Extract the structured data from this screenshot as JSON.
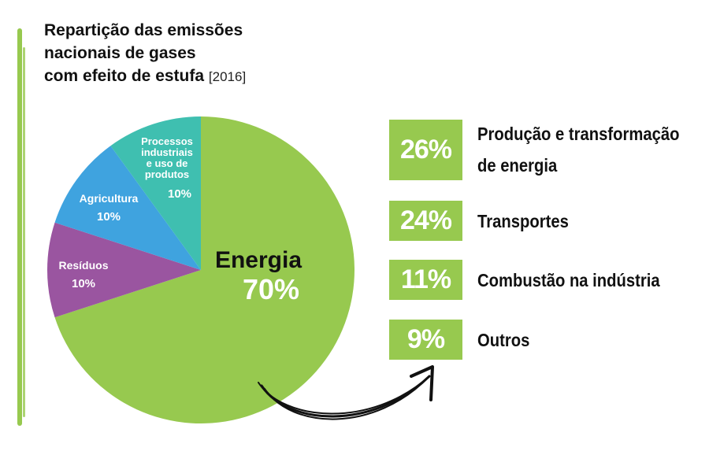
{
  "header": {
    "title_line1": "Repartição das emissões",
    "title_line2": "nacionais de gases",
    "title_line3": "com efeito de estufa",
    "year": "[2016]"
  },
  "colors": {
    "energia": "#97c94f",
    "residuos": "#9a55a0",
    "agricultura": "#3fa3df",
    "processos": "#3fbfb0",
    "arrow": "#111111"
  },
  "chart_data": [
    {
      "type": "pie",
      "title": "Repartição das emissões nacionais de gases com efeito de estufa [2016]",
      "slices": [
        {
          "label_lines": [
            "Energia"
          ],
          "value": 70,
          "value_label": "70%",
          "color": "#97c94f"
        },
        {
          "label_lines": [
            "Resíduos"
          ],
          "value": 10,
          "value_label": "10%",
          "color": "#9a55a0"
        },
        {
          "label_lines": [
            "Agricultura"
          ],
          "value": 10,
          "value_label": "10%",
          "color": "#3fa3df"
        },
        {
          "label_lines": [
            "Processos",
            "industriais",
            "e uso de",
            "produtos"
          ],
          "value": 10,
          "value_label": "10%",
          "color": "#3fbfb0"
        }
      ]
    },
    {
      "type": "table",
      "rows": [
        {
          "value": 26,
          "value_label": "26%",
          "label_lines": [
            "Produção e transformação",
            "de energia"
          ]
        },
        {
          "value": 24,
          "value_label": "24%",
          "label_lines": [
            "Transportes"
          ]
        },
        {
          "value": 11,
          "value_label": "11%",
          "label_lines": [
            "Combustão na indústria"
          ]
        },
        {
          "value": 9,
          "value_label": "9%",
          "label_lines": [
            "Outros"
          ]
        }
      ]
    }
  ]
}
